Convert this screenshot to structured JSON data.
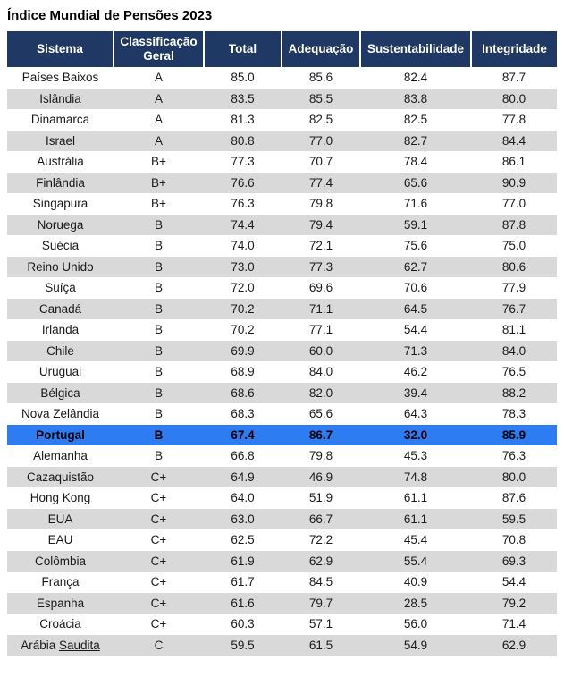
{
  "title": "Índice Mundial de Pensões 2023",
  "colors": {
    "header_bg": "#1F3864",
    "header_text": "#FFFFFF",
    "row_alt_bg": "#D9D9D9",
    "highlight_bg": "#2E7CF2",
    "body_text": "#1A1A1A"
  },
  "table": {
    "columns": [
      "Sistema",
      "Classificação Geral",
      "Total",
      "Adequação",
      "Sustentabilidade",
      "Integridade"
    ],
    "column_keys": [
      "sistema",
      "classificacao",
      "total",
      "adequacao",
      "sustentabilidade",
      "integridade"
    ],
    "rows": [
      {
        "sistema": "Países Baixos",
        "classificacao": "A",
        "total": "85.0",
        "adequacao": "85.6",
        "sustentabilidade": "82.4",
        "integridade": "87.7"
      },
      {
        "sistema": "Islândia",
        "classificacao": "A",
        "total": "83.5",
        "adequacao": "85.5",
        "sustentabilidade": "83.8",
        "integridade": "80.0"
      },
      {
        "sistema": "Dinamarca",
        "classificacao": "A",
        "total": "81.3",
        "adequacao": "82.5",
        "sustentabilidade": "82.5",
        "integridade": "77.8"
      },
      {
        "sistema": "Israel",
        "classificacao": "A",
        "total": "80.8",
        "adequacao": "77.0",
        "sustentabilidade": "82.7",
        "integridade": "84.4"
      },
      {
        "sistema": "Austrália",
        "classificacao": "B+",
        "total": "77.3",
        "adequacao": "70.7",
        "sustentabilidade": "78.4",
        "integridade": "86.1"
      },
      {
        "sistema": "Finlândia",
        "classificacao": "B+",
        "total": "76.6",
        "adequacao": "77.4",
        "sustentabilidade": "65.6",
        "integridade": "90.9"
      },
      {
        "sistema": "Singapura",
        "classificacao": "B+",
        "total": "76.3",
        "adequacao": "79.8",
        "sustentabilidade": "71.6",
        "integridade": "77.0"
      },
      {
        "sistema": "Noruega",
        "classificacao": "B",
        "total": "74.4",
        "adequacao": "79.4",
        "sustentabilidade": "59.1",
        "integridade": "87.8"
      },
      {
        "sistema": "Suécia",
        "classificacao": "B",
        "total": "74.0",
        "adequacao": "72.1",
        "sustentabilidade": "75.6",
        "integridade": "75.0"
      },
      {
        "sistema": "Reino Unido",
        "classificacao": "B",
        "total": "73.0",
        "adequacao": "77.3",
        "sustentabilidade": "62.7",
        "integridade": "80.6"
      },
      {
        "sistema": "Suíça",
        "classificacao": "B",
        "total": "72.0",
        "adequacao": "69.6",
        "sustentabilidade": "70.6",
        "integridade": "77.9"
      },
      {
        "sistema": "Canadá",
        "classificacao": "B",
        "total": "70.2",
        "adequacao": "71.1",
        "sustentabilidade": "64.5",
        "integridade": "76.7"
      },
      {
        "sistema": "Irlanda",
        "classificacao": "B",
        "total": "70.2",
        "adequacao": "77.1",
        "sustentabilidade": "54.4",
        "integridade": "81.1"
      },
      {
        "sistema": "Chile",
        "classificacao": "B",
        "total": "69.9",
        "adequacao": "60.0",
        "sustentabilidade": "71.3",
        "integridade": "84.0"
      },
      {
        "sistema": "Uruguai",
        "classificacao": "B",
        "total": "68.9",
        "adequacao": "84.0",
        "sustentabilidade": "46.2",
        "integridade": "76.5"
      },
      {
        "sistema": "Bélgica",
        "classificacao": "B",
        "total": "68.6",
        "adequacao": "82.0",
        "sustentabilidade": "39.4",
        "integridade": "88.2"
      },
      {
        "sistema": "Nova Zelândia",
        "classificacao": "B",
        "total": "68.3",
        "adequacao": "65.6",
        "sustentabilidade": "64.3",
        "integridade": "78.3"
      },
      {
        "sistema": "Portugal",
        "classificacao": "B",
        "total": "67.4",
        "adequacao": "86.7",
        "sustentabilidade": "32.0",
        "integridade": "85.9",
        "highlight": true
      },
      {
        "sistema": "Alemanha",
        "classificacao": "B",
        "total": "66.8",
        "adequacao": "79.8",
        "sustentabilidade": "45.3",
        "integridade": "76.3"
      },
      {
        "sistema": "Cazaquistão",
        "classificacao": "C+",
        "total": "64.9",
        "adequacao": "46.9",
        "sustentabilidade": "74.8",
        "integridade": "80.0"
      },
      {
        "sistema": "Hong Kong",
        "classificacao": "C+",
        "total": "64.0",
        "adequacao": "51.9",
        "sustentabilidade": "61.1",
        "integridade": "87.6"
      },
      {
        "sistema": "EUA",
        "classificacao": "C+",
        "total": "63.0",
        "adequacao": "66.7",
        "sustentabilidade": "61.1",
        "integridade": "59.5"
      },
      {
        "sistema": "EAU",
        "classificacao": "C+",
        "total": "62.5",
        "adequacao": "72.2",
        "sustentabilidade": "45.4",
        "integridade": "70.8"
      },
      {
        "sistema": "Colômbia",
        "classificacao": "C+",
        "total": "61.9",
        "adequacao": "62.9",
        "sustentabilidade": "55.4",
        "integridade": "69.3"
      },
      {
        "sistema": "França",
        "classificacao": "C+",
        "total": "61.7",
        "adequacao": "84.5",
        "sustentabilidade": "40.9",
        "integridade": "54.4"
      },
      {
        "sistema": "Espanha",
        "classificacao": "C+",
        "total": "61.6",
        "adequacao": "79.7",
        "sustentabilidade": "28.5",
        "integridade": "79.2"
      },
      {
        "sistema": "Croácia",
        "classificacao": "C+",
        "total": "60.3",
        "adequacao": "57.1",
        "sustentabilidade": "56.0",
        "integridade": "71.4"
      },
      {
        "sistema": "Arábia Saudita",
        "classificacao": "C",
        "total": "59.5",
        "adequacao": "61.5",
        "sustentabilidade": "54.9",
        "integridade": "62.9",
        "underline_word": "Saudita"
      }
    ]
  }
}
